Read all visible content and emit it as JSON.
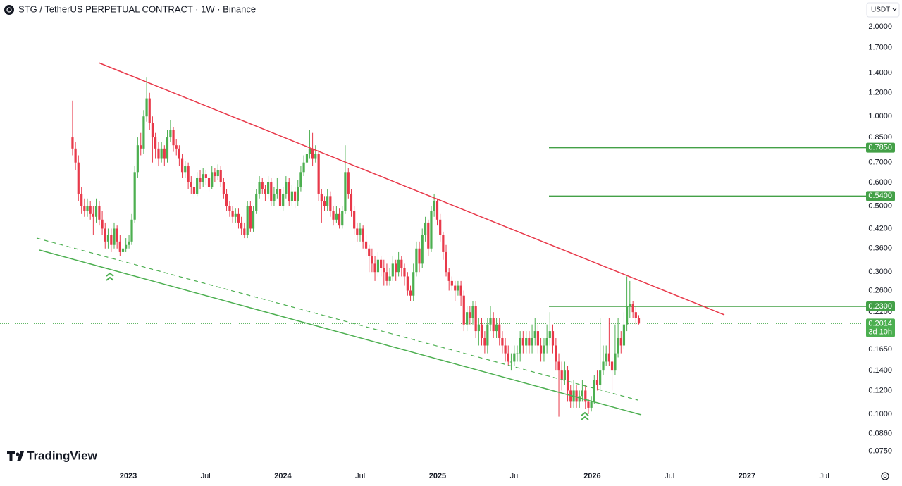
{
  "header": {
    "title": "STG / TetherUS PERPETUAL CONTRACT · 1W · Binance",
    "currency": "USDT"
  },
  "brand": "TradingView",
  "chart_data": {
    "type": "candlestick",
    "up_color": "#4caf50",
    "down_color": "#e8394a",
    "level_color": "#43a047",
    "log_scale": true,
    "grid": false,
    "xlim": [
      2022.171,
      2027.752
    ],
    "xticks": [
      2023,
      {
        "value": 2023.5,
        "label": "Jul"
      },
      2024,
      {
        "value": 2024.5,
        "label": "Jul"
      },
      2025,
      {
        "value": 2025.5,
        "label": "Jul"
      },
      2026,
      {
        "value": 2026.5,
        "label": "Jul"
      },
      2027,
      {
        "value": 2027.5,
        "label": "Jul"
      }
    ],
    "ylim": [
      0.0657,
      2.46
    ],
    "yticks": [
      {
        "value": 2,
        "label": "2.0000"
      },
      {
        "value": 1.7,
        "label": "1.7000"
      },
      {
        "value": 1.4,
        "label": "1.4000"
      },
      {
        "value": 1.2,
        "label": "1.2000"
      },
      {
        "value": 1,
        "label": "1.0000"
      },
      {
        "value": 0.85,
        "label": "0.8500"
      },
      {
        "value": 0.7,
        "label": "0.7000"
      },
      {
        "value": 0.6,
        "label": "0.6000"
      },
      {
        "value": 0.5,
        "label": "0.5000"
      },
      {
        "value": 0.42,
        "label": "0.4200"
      },
      {
        "value": 0.36,
        "label": "0.3600"
      },
      {
        "value": 0.3,
        "label": "0.3000"
      },
      {
        "value": 0.26,
        "label": "0.2600"
      },
      {
        "value": 0.22,
        "label": "0.2200"
      },
      {
        "value": 0.165,
        "label": "0.1650"
      },
      {
        "value": 0.14,
        "label": "0.1400"
      },
      {
        "value": 0.12,
        "label": "0.1200"
      },
      {
        "value": 0.1,
        "label": "0.1000"
      },
      {
        "value": 0.086,
        "label": "0.0860"
      },
      {
        "value": 0.075,
        "label": "0.0750"
      }
    ],
    "levels": [
      {
        "value": 0.785,
        "label": "0.7850"
      },
      {
        "value": 0.54,
        "label": "0.5400"
      },
      {
        "value": 0.23,
        "label": "0.2300"
      }
    ],
    "last_price": {
      "value": 0.2014,
      "label": "0.2014"
    },
    "countdown": "3d 10h",
    "x": [
      2022.64,
      2022.659,
      2022.678,
      2022.698,
      2022.717,
      2022.736,
      2022.755,
      2022.774,
      2022.793,
      2022.813,
      2022.832,
      2022.851,
      2022.87,
      2022.89,
      2022.909,
      2022.928,
      2022.947,
      2022.966,
      2022.985,
      2023.005,
      2023.023,
      2023.042,
      2023.061,
      2023.081,
      2023.1,
      2023.119,
      2023.138,
      2023.157,
      2023.176,
      2023.196,
      2023.215,
      2023.234,
      2023.253,
      2023.273,
      2023.292,
      2023.311,
      2023.33,
      2023.349,
      2023.368,
      2023.388,
      2023.407,
      2023.426,
      2023.445,
      2023.465,
      2023.484,
      2023.503,
      2023.522,
      2023.541,
      2023.56,
      2023.58,
      2023.598,
      2023.617,
      2023.636,
      2023.656,
      2023.675,
      2023.694,
      2023.713,
      2023.732,
      2023.751,
      2023.771,
      2023.79,
      2023.809,
      2023.828,
      2023.848,
      2023.867,
      2023.886,
      2023.905,
      2023.924,
      2023.943,
      2023.963,
      2023.982,
      2024.001,
      2024.02,
      2024.04,
      2024.059,
      2024.078,
      2024.097,
      2024.116,
      2024.135,
      2024.155,
      2024.173,
      2024.192,
      2024.211,
      2024.231,
      2024.25,
      2024.269,
      2024.288,
      2024.307,
      2024.326,
      2024.346,
      2024.365,
      2024.384,
      2024.403,
      2024.423,
      2024.442,
      2024.461,
      2024.48,
      2024.499,
      2024.518,
      2024.538,
      2024.557,
      2024.576,
      2024.595,
      2024.615,
      2024.634,
      2024.653,
      2024.672,
      2024.691,
      2024.71,
      2024.73,
      2024.748,
      2024.767,
      2024.786,
      2024.806,
      2024.825,
      2024.844,
      2024.863,
      2024.882,
      2024.901,
      2024.921,
      2024.94,
      2024.959,
      2024.978,
      2024.998,
      2025.017,
      2025.036,
      2025.055,
      2025.074,
      2025.093,
      2025.113,
      2025.132,
      2025.151,
      2025.17,
      2025.19,
      2025.209,
      2025.228,
      2025.247,
      2025.266,
      2025.285,
      2025.305,
      2025.323,
      2025.342,
      2025.361,
      2025.381,
      2025.4,
      2025.419,
      2025.438,
      2025.457,
      2025.476,
      2025.496,
      2025.515,
      2025.534,
      2025.553,
      2025.573,
      2025.592,
      2025.611,
      2025.63,
      2025.649,
      2025.668,
      2025.688,
      2025.707,
      2025.726,
      2025.745,
      2025.765,
      2025.784,
      2025.803,
      2025.822,
      2025.841,
      2025.86,
      2025.88,
      2025.898,
      2025.917,
      2025.936,
      2025.956,
      2025.975,
      2025.994,
      2026.013,
      2026.032,
      2026.051,
      2026.071,
      2026.09,
      2026.109,
      2026.128,
      2026.148,
      2026.167,
      2026.186,
      2026.205,
      2026.224,
      2026.243,
      2026.263,
      2026.282,
      2026.301
    ],
    "candles": [
      [
        0.85,
        1.13,
        0.74,
        0.78
      ],
      [
        0.78,
        0.82,
        0.66,
        0.7
      ],
      [
        0.7,
        0.74,
        0.52,
        0.55
      ],
      [
        0.55,
        0.58,
        0.47,
        0.5
      ],
      [
        0.5,
        0.53,
        0.46,
        0.48
      ],
      [
        0.48,
        0.53,
        0.46,
        0.5
      ],
      [
        0.5,
        0.52,
        0.45,
        0.47
      ],
      [
        0.47,
        0.5,
        0.4,
        0.46
      ],
      [
        0.46,
        0.53,
        0.44,
        0.5
      ],
      [
        0.5,
        0.52,
        0.43,
        0.45
      ],
      [
        0.45,
        0.48,
        0.4,
        0.42
      ],
      [
        0.42,
        0.44,
        0.36,
        0.38
      ],
      [
        0.38,
        0.42,
        0.36,
        0.4
      ],
      [
        0.4,
        0.42,
        0.35,
        0.37
      ],
      [
        0.37,
        0.44,
        0.36,
        0.42
      ],
      [
        0.42,
        0.43,
        0.36,
        0.38
      ],
      [
        0.38,
        0.4,
        0.34,
        0.35
      ],
      [
        0.35,
        0.38,
        0.34,
        0.36
      ],
      [
        0.36,
        0.39,
        0.35,
        0.37
      ],
      [
        0.37,
        0.4,
        0.36,
        0.38
      ],
      [
        0.38,
        0.47,
        0.37,
        0.45
      ],
      [
        0.45,
        0.68,
        0.44,
        0.65
      ],
      [
        0.65,
        0.85,
        0.62,
        0.8
      ],
      [
        0.8,
        0.88,
        0.74,
        0.78
      ],
      [
        0.78,
        1.05,
        0.75,
        1.0
      ],
      [
        1.0,
        1.35,
        0.96,
        1.15
      ],
      [
        1.15,
        1.2,
        0.9,
        0.95
      ],
      [
        0.95,
        1.0,
        0.7,
        0.85
      ],
      [
        0.85,
        0.88,
        0.72,
        0.78
      ],
      [
        0.78,
        0.82,
        0.68,
        0.72
      ],
      [
        0.72,
        0.82,
        0.7,
        0.78
      ],
      [
        0.78,
        0.8,
        0.68,
        0.72
      ],
      [
        0.72,
        0.9,
        0.7,
        0.85
      ],
      [
        0.85,
        0.97,
        0.82,
        0.9
      ],
      [
        0.9,
        0.92,
        0.76,
        0.8
      ],
      [
        0.8,
        0.84,
        0.74,
        0.78
      ],
      [
        0.78,
        0.8,
        0.68,
        0.72
      ],
      [
        0.72,
        0.75,
        0.62,
        0.65
      ],
      [
        0.65,
        0.71,
        0.62,
        0.68
      ],
      [
        0.68,
        0.7,
        0.57,
        0.6
      ],
      [
        0.6,
        0.63,
        0.55,
        0.58
      ],
      [
        0.58,
        0.6,
        0.53,
        0.55
      ],
      [
        0.55,
        0.65,
        0.54,
        0.62
      ],
      [
        0.62,
        0.66,
        0.57,
        0.6
      ],
      [
        0.6,
        0.67,
        0.58,
        0.64
      ],
      [
        0.64,
        0.66,
        0.59,
        0.62
      ],
      [
        0.62,
        0.64,
        0.56,
        0.58
      ],
      [
        0.58,
        0.68,
        0.57,
        0.65
      ],
      [
        0.65,
        0.67,
        0.6,
        0.63
      ],
      [
        0.63,
        0.69,
        0.61,
        0.66
      ],
      [
        0.66,
        0.68,
        0.58,
        0.6
      ],
      [
        0.6,
        0.62,
        0.53,
        0.55
      ],
      [
        0.55,
        0.57,
        0.48,
        0.5
      ],
      [
        0.5,
        0.52,
        0.46,
        0.48
      ],
      [
        0.48,
        0.5,
        0.44,
        0.46
      ],
      [
        0.46,
        0.49,
        0.44,
        0.47
      ],
      [
        0.47,
        0.49,
        0.42,
        0.44
      ],
      [
        0.44,
        0.46,
        0.4,
        0.42
      ],
      [
        0.42,
        0.44,
        0.39,
        0.4
      ],
      [
        0.4,
        0.52,
        0.39,
        0.5
      ],
      [
        0.5,
        0.52,
        0.41,
        0.42
      ],
      [
        0.42,
        0.5,
        0.41,
        0.48
      ],
      [
        0.48,
        0.57,
        0.47,
        0.55
      ],
      [
        0.55,
        0.63,
        0.53,
        0.6
      ],
      [
        0.6,
        0.62,
        0.55,
        0.57
      ],
      [
        0.57,
        0.59,
        0.52,
        0.55
      ],
      [
        0.55,
        0.63,
        0.53,
        0.6
      ],
      [
        0.6,
        0.62,
        0.5,
        0.52
      ],
      [
        0.52,
        0.58,
        0.5,
        0.55
      ],
      [
        0.55,
        0.62,
        0.53,
        0.57
      ],
      [
        0.57,
        0.59,
        0.48,
        0.5
      ],
      [
        0.5,
        0.58,
        0.48,
        0.55
      ],
      [
        0.55,
        0.63,
        0.53,
        0.6
      ],
      [
        0.6,
        0.62,
        0.5,
        0.52
      ],
      [
        0.52,
        0.59,
        0.5,
        0.56
      ],
      [
        0.56,
        0.58,
        0.49,
        0.52
      ],
      [
        0.52,
        0.61,
        0.5,
        0.58
      ],
      [
        0.58,
        0.68,
        0.56,
        0.65
      ],
      [
        0.65,
        0.74,
        0.63,
        0.7
      ],
      [
        0.7,
        0.8,
        0.68,
        0.75
      ],
      [
        0.75,
        0.9,
        0.72,
        0.78
      ],
      [
        0.78,
        0.88,
        0.68,
        0.72
      ],
      [
        0.72,
        0.8,
        0.7,
        0.75
      ],
      [
        0.75,
        0.77,
        0.52,
        0.55
      ],
      [
        0.55,
        0.57,
        0.44,
        0.52
      ],
      [
        0.52,
        0.54,
        0.48,
        0.5
      ],
      [
        0.5,
        0.57,
        0.48,
        0.54
      ],
      [
        0.54,
        0.56,
        0.46,
        0.48
      ],
      [
        0.48,
        0.5,
        0.43,
        0.45
      ],
      [
        0.45,
        0.5,
        0.44,
        0.47
      ],
      [
        0.47,
        0.49,
        0.42,
        0.43
      ],
      [
        0.43,
        0.5,
        0.42,
        0.48
      ],
      [
        0.48,
        0.8,
        0.47,
        0.65
      ],
      [
        0.65,
        0.67,
        0.53,
        0.55
      ],
      [
        0.55,
        0.57,
        0.46,
        0.48
      ],
      [
        0.48,
        0.5,
        0.4,
        0.42
      ],
      [
        0.42,
        0.44,
        0.38,
        0.4
      ],
      [
        0.4,
        0.44,
        0.38,
        0.42
      ],
      [
        0.42,
        0.43,
        0.36,
        0.38
      ],
      [
        0.38,
        0.4,
        0.34,
        0.36
      ],
      [
        0.36,
        0.37,
        0.3,
        0.34
      ],
      [
        0.34,
        0.36,
        0.3,
        0.32
      ],
      [
        0.32,
        0.34,
        0.28,
        0.3
      ],
      [
        0.3,
        0.35,
        0.29,
        0.33
      ],
      [
        0.33,
        0.34,
        0.29,
        0.31
      ],
      [
        0.31,
        0.33,
        0.27,
        0.3
      ],
      [
        0.3,
        0.32,
        0.27,
        0.28
      ],
      [
        0.28,
        0.31,
        0.27,
        0.29
      ],
      [
        0.29,
        0.34,
        0.28,
        0.32
      ],
      [
        0.32,
        0.33,
        0.28,
        0.3
      ],
      [
        0.3,
        0.35,
        0.29,
        0.33
      ],
      [
        0.33,
        0.34,
        0.29,
        0.31
      ],
      [
        0.31,
        0.32,
        0.27,
        0.29
      ],
      [
        0.29,
        0.3,
        0.25,
        0.26
      ],
      [
        0.26,
        0.27,
        0.24,
        0.25
      ],
      [
        0.25,
        0.32,
        0.24,
        0.3
      ],
      [
        0.3,
        0.38,
        0.29,
        0.36
      ],
      [
        0.36,
        0.38,
        0.3,
        0.32
      ],
      [
        0.32,
        0.42,
        0.31,
        0.4
      ],
      [
        0.4,
        0.46,
        0.38,
        0.44
      ],
      [
        0.44,
        0.45,
        0.34,
        0.36
      ],
      [
        0.36,
        0.5,
        0.35,
        0.48
      ],
      [
        0.48,
        0.55,
        0.46,
        0.52
      ],
      [
        0.52,
        0.53,
        0.43,
        0.45
      ],
      [
        0.45,
        0.47,
        0.38,
        0.4
      ],
      [
        0.4,
        0.41,
        0.33,
        0.35
      ],
      [
        0.35,
        0.37,
        0.29,
        0.3
      ],
      [
        0.3,
        0.31,
        0.26,
        0.28
      ],
      [
        0.28,
        0.29,
        0.26,
        0.27
      ],
      [
        0.27,
        0.28,
        0.24,
        0.26
      ],
      [
        0.26,
        0.28,
        0.25,
        0.27
      ],
      [
        0.27,
        0.28,
        0.23,
        0.25
      ],
      [
        0.25,
        0.26,
        0.19,
        0.2
      ],
      [
        0.2,
        0.23,
        0.19,
        0.22
      ],
      [
        0.22,
        0.23,
        0.2,
        0.21
      ],
      [
        0.21,
        0.24,
        0.2,
        0.23
      ],
      [
        0.23,
        0.24,
        0.18,
        0.19
      ],
      [
        0.19,
        0.21,
        0.17,
        0.2
      ],
      [
        0.2,
        0.21,
        0.17,
        0.18
      ],
      [
        0.18,
        0.19,
        0.16,
        0.17
      ],
      [
        0.17,
        0.21,
        0.16,
        0.2
      ],
      [
        0.2,
        0.23,
        0.19,
        0.21
      ],
      [
        0.21,
        0.22,
        0.18,
        0.19
      ],
      [
        0.19,
        0.21,
        0.18,
        0.2
      ],
      [
        0.2,
        0.21,
        0.17,
        0.18
      ],
      [
        0.18,
        0.19,
        0.16,
        0.17
      ],
      [
        0.17,
        0.18,
        0.15,
        0.16
      ],
      [
        0.16,
        0.17,
        0.145,
        0.15
      ],
      [
        0.15,
        0.16,
        0.14,
        0.15
      ],
      [
        0.15,
        0.17,
        0.145,
        0.16
      ],
      [
        0.16,
        0.17,
        0.15,
        0.16
      ],
      [
        0.16,
        0.19,
        0.15,
        0.18
      ],
      [
        0.18,
        0.19,
        0.16,
        0.17
      ],
      [
        0.17,
        0.19,
        0.16,
        0.18
      ],
      [
        0.18,
        0.19,
        0.16,
        0.17
      ],
      [
        0.17,
        0.2,
        0.16,
        0.18
      ],
      [
        0.18,
        0.21,
        0.17,
        0.19
      ],
      [
        0.19,
        0.2,
        0.16,
        0.17
      ],
      [
        0.17,
        0.18,
        0.15,
        0.16
      ],
      [
        0.16,
        0.18,
        0.15,
        0.17
      ],
      [
        0.17,
        0.2,
        0.16,
        0.18
      ],
      [
        0.18,
        0.22,
        0.17,
        0.19
      ],
      [
        0.19,
        0.2,
        0.16,
        0.17
      ],
      [
        0.17,
        0.18,
        0.14,
        0.15
      ],
      [
        0.15,
        0.16,
        0.098,
        0.14
      ],
      [
        0.14,
        0.15,
        0.12,
        0.13
      ],
      [
        0.13,
        0.15,
        0.125,
        0.14
      ],
      [
        0.14,
        0.145,
        0.11,
        0.12
      ],
      [
        0.12,
        0.125,
        0.105,
        0.11
      ],
      [
        0.11,
        0.13,
        0.105,
        0.12
      ],
      [
        0.12,
        0.125,
        0.105,
        0.11
      ],
      [
        0.11,
        0.12,
        0.105,
        0.115
      ],
      [
        0.115,
        0.13,
        0.11,
        0.12
      ],
      [
        0.12,
        0.125,
        0.104,
        0.11
      ],
      [
        0.11,
        0.112,
        0.1,
        0.105
      ],
      [
        0.105,
        0.115,
        0.102,
        0.11
      ],
      [
        0.11,
        0.135,
        0.108,
        0.13
      ],
      [
        0.13,
        0.14,
        0.12,
        0.125
      ],
      [
        0.125,
        0.21,
        0.12,
        0.14
      ],
      [
        0.14,
        0.17,
        0.135,
        0.15
      ],
      [
        0.15,
        0.17,
        0.145,
        0.16
      ],
      [
        0.16,
        0.21,
        0.145,
        0.15
      ],
      [
        0.15,
        0.155,
        0.12,
        0.14
      ],
      [
        0.14,
        0.2,
        0.135,
        0.16
      ],
      [
        0.16,
        0.21,
        0.155,
        0.18
      ],
      [
        0.18,
        0.19,
        0.16,
        0.17
      ],
      [
        0.17,
        0.22,
        0.165,
        0.2
      ],
      [
        0.2,
        0.29,
        0.19,
        0.23
      ],
      [
        0.23,
        0.28,
        0.21,
        0.235
      ],
      [
        0.235,
        0.24,
        0.21,
        0.22
      ],
      [
        0.22,
        0.23,
        0.2,
        0.21
      ],
      [
        0.21,
        0.215,
        0.2,
        0.2014
      ]
    ]
  }
}
